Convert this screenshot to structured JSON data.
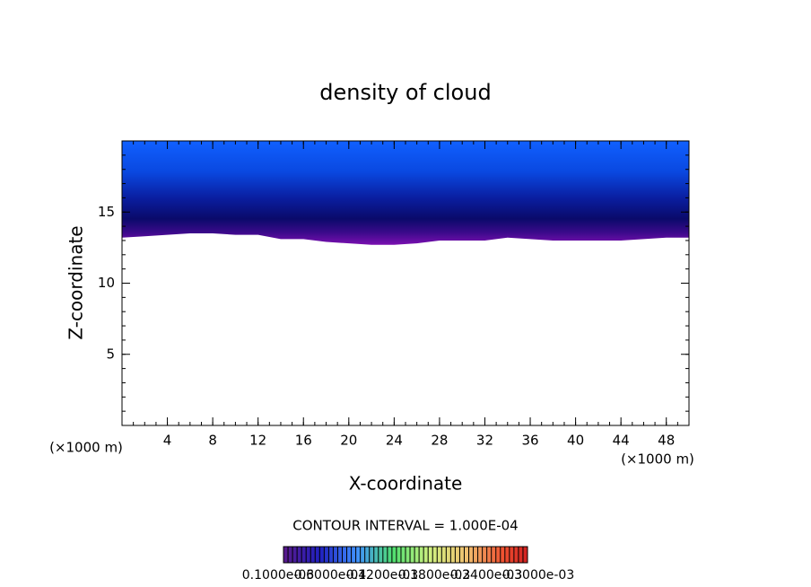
{
  "chart_data": {
    "type": "contour",
    "title": "density of cloud",
    "x_label": "X-coordinate",
    "y_label": "Z-coordinate",
    "x_unit_left": "(×1000 m)",
    "x_unit_right": "(×1000 m)",
    "contour_interval": "CONTOUR INTERVAL = 1.000E-04",
    "colorbar_labels": [
      "0.1000e-03",
      "0.6000e-04",
      "0.1200e-03",
      "0.1800e-03",
      "0.2400e-03",
      "0.3000e-03"
    ],
    "x": [
      0,
      2,
      4,
      6,
      8,
      10,
      12,
      14,
      16,
      18,
      20,
      22,
      24,
      26,
      28,
      30,
      32,
      34,
      36,
      38,
      40,
      42,
      44,
      46,
      48,
      50
    ],
    "base": [
      13.2,
      13.3,
      13.4,
      13.5,
      13.5,
      13.4,
      13.4,
      13.1,
      13.1,
      12.9,
      12.8,
      12.7,
      12.7,
      12.8,
      13.0,
      13.0,
      13.0,
      13.2,
      13.1,
      13.0,
      13.0,
      13.0,
      13.0,
      13.1,
      13.2,
      13.2
    ],
    "xlim": [
      0,
      50
    ],
    "ylim": [
      0,
      20
    ],
    "xticks": [
      4,
      8,
      12,
      16,
      20,
      24,
      28,
      32,
      36,
      40,
      44,
      48
    ],
    "yticks": [
      5,
      10,
      15
    ]
  }
}
